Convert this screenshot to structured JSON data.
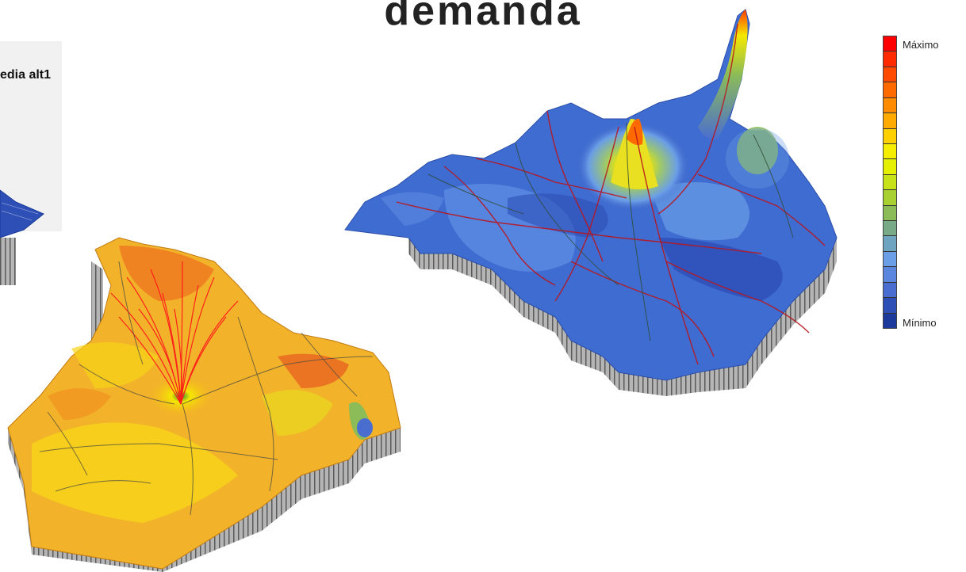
{
  "title": "demanda",
  "left_panel": {
    "label": "edia alt1"
  },
  "legend": {
    "max_label": "Máximo",
    "min_label": "Mínimo",
    "colors": [
      "#ff0000",
      "#ff2a00",
      "#ff4a00",
      "#ff6a00",
      "#ff8c00",
      "#ffaa00",
      "#ffd000",
      "#f6ee00",
      "#e4f000",
      "#c8e218",
      "#a8d030",
      "#8cbc58",
      "#78aa88",
      "#6ea4c0",
      "#6a9ee6",
      "#5a86de",
      "#4a6ed0",
      "#2d4fb6",
      "#1c3a9c"
    ]
  },
  "surface_colors": {
    "blue_surface": "#3a66c8",
    "yellow_surface": "#f2c418",
    "walls": "#9a9a9a",
    "red_lines": "#b8161e",
    "dark_lines": "#3a4a3a"
  }
}
